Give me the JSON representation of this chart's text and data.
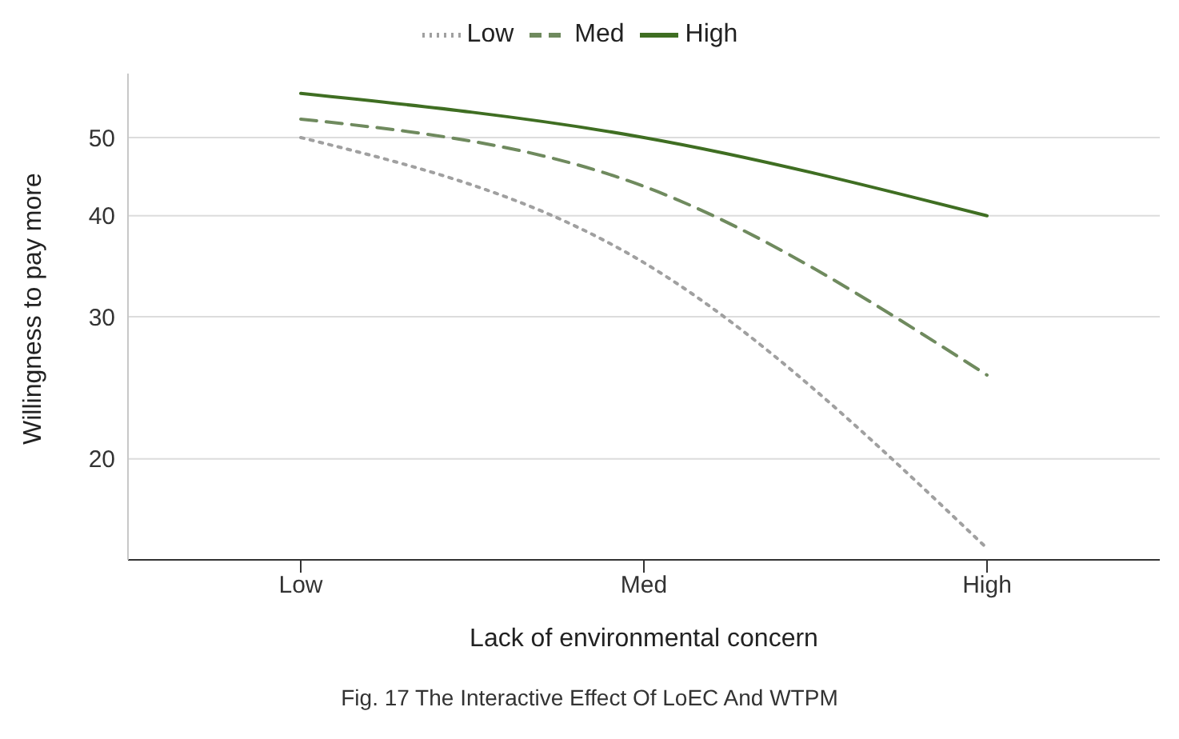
{
  "chart_data": {
    "type": "line",
    "xlabel": "Lack of environmental concern",
    "ylabel": "Willingness to pay more",
    "categories": [
      "Low",
      "Med",
      "High"
    ],
    "series": [
      {
        "name": "Low",
        "color": "#a0a0a0",
        "line_style": "dotted",
        "values": [
          50,
          35,
          15.5
        ]
      },
      {
        "name": "Med",
        "color": "#6f8a5e",
        "line_style": "dashed",
        "values": [
          52.7,
          43.5,
          25.4
        ]
      },
      {
        "name": "High",
        "color": "#3f6e22",
        "line_style": "solid",
        "values": [
          56.7,
          50,
          40
        ]
      }
    ],
    "log": true,
    "ylim": [
      15,
      60
    ],
    "yticks": [
      20,
      30,
      40,
      50
    ],
    "grid": "y",
    "legend": "top",
    "marker": "none",
    "annotations": [
      "Fig. 17 The Interactive Effect Of LoEC And WTPM"
    ]
  }
}
